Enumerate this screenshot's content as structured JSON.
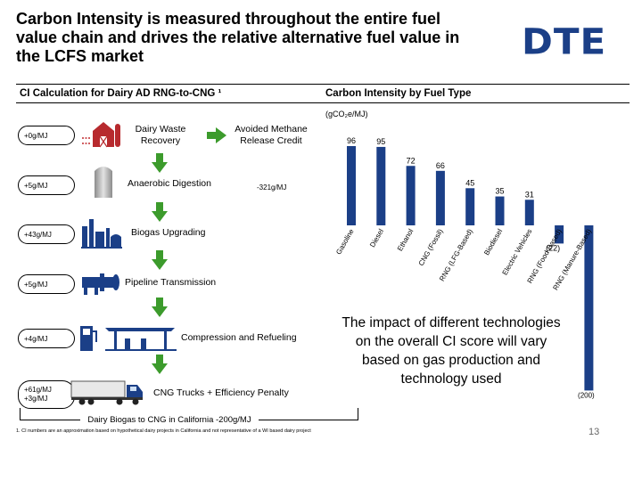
{
  "title": "Carbon Intensity is measured throughout the entire fuel value chain and drives the relative alternative fuel value in the LCFS market",
  "logo": "DTE",
  "left_section_title": "CI Calculation for Dairy AD RNG-to-CNG ¹",
  "right_section_title": "Carbon Intensity by Fuel Type",
  "units": "(gCO₂e/MJ)",
  "steps": [
    {
      "ci": "+0g/MJ",
      "label": "Dairy Waste Recovery",
      "icon": "barn-icon"
    },
    {
      "ci": "+5g/MJ",
      "label": "Anaerobic Digestion",
      "icon": "digester-icon"
    },
    {
      "ci": "+43g/MJ",
      "label": "Biogas Upgrading",
      "icon": "upgrading-plant-icon"
    },
    {
      "ci": "+5g/MJ",
      "label": "Pipeline Transmission",
      "icon": "pipeline-icon"
    },
    {
      "ci": "+4g/MJ",
      "label": "Compression and Refueling",
      "icon": "fuel-station-icon"
    },
    {
      "ci_line1": "+61g/MJ",
      "ci_line2": "+3g/MJ",
      "label": "CNG Trucks + Efficiency Penalty",
      "icon": "truck-icon"
    }
  ],
  "avoided": {
    "label": "Avoided Methane Release Credit",
    "value": "-321g/MJ",
    "icon": "right-arrow-icon"
  },
  "summary": "Dairy Biogas to CNG in California -200g/MJ",
  "footnote": "1. CI numbers are an approximation based on hypothetical dairy projects in California and not representative of a WI based dairy project",
  "page_number": "13",
  "callout": "The impact of different technologies on the overall CI score will vary based on gas production and technology used",
  "colors": {
    "accent_green": "#3c9b2c",
    "bar_blue": "#1b3f87",
    "logo_blue": "#1b3f87"
  },
  "chart_data": {
    "type": "bar",
    "title": "Carbon Intensity by Fuel Type",
    "ylabel": "(gCO₂e/MJ)",
    "categories": [
      "Gasoline",
      "Diesel",
      "Ethanol",
      "CNG (Fossil)",
      "RNG (LFG-Based)",
      "Biodiesel",
      "Electric Vehicles",
      "RNG (Food-Based)",
      "RNG (Manure-Based)"
    ],
    "values": [
      96,
      95,
      72,
      66,
      45,
      35,
      31,
      -22,
      -200
    ],
    "value_labels": [
      "96",
      "95",
      "72",
      "66",
      "45",
      "35",
      "31",
      "(22)",
      "(200)"
    ],
    "ylim": [
      -200,
      96
    ],
    "grid": false,
    "legend": "none"
  }
}
